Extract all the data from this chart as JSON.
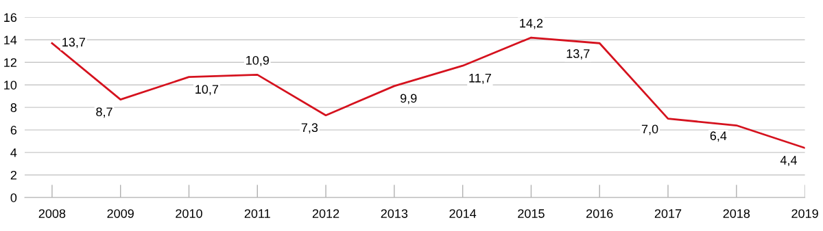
{
  "chart_data": {
    "type": "line",
    "categories": [
      "2008",
      "2009",
      "2010",
      "2011",
      "2012",
      "2013",
      "2014",
      "2015",
      "2016",
      "2017",
      "2018",
      "2019"
    ],
    "series": [
      {
        "color": "#d5121e",
        "values": [
          13.7,
          8.7,
          10.7,
          10.9,
          7.3,
          9.9,
          11.7,
          14.2,
          13.7,
          7.0,
          6.4,
          4.4
        ],
        "value_labels": [
          "13,7",
          "8,7",
          "10,7",
          "10,9",
          "7,3",
          "9,9",
          "11,7",
          "14,2",
          "13,7",
          "7,0",
          "6,4",
          "4,4"
        ]
      }
    ],
    "ylim": [
      0,
      16
    ],
    "yticks": [
      0,
      2,
      4,
      6,
      8,
      10,
      12,
      14,
      16
    ],
    "grid": "y",
    "marker": "none",
    "line_style": "solid"
  }
}
